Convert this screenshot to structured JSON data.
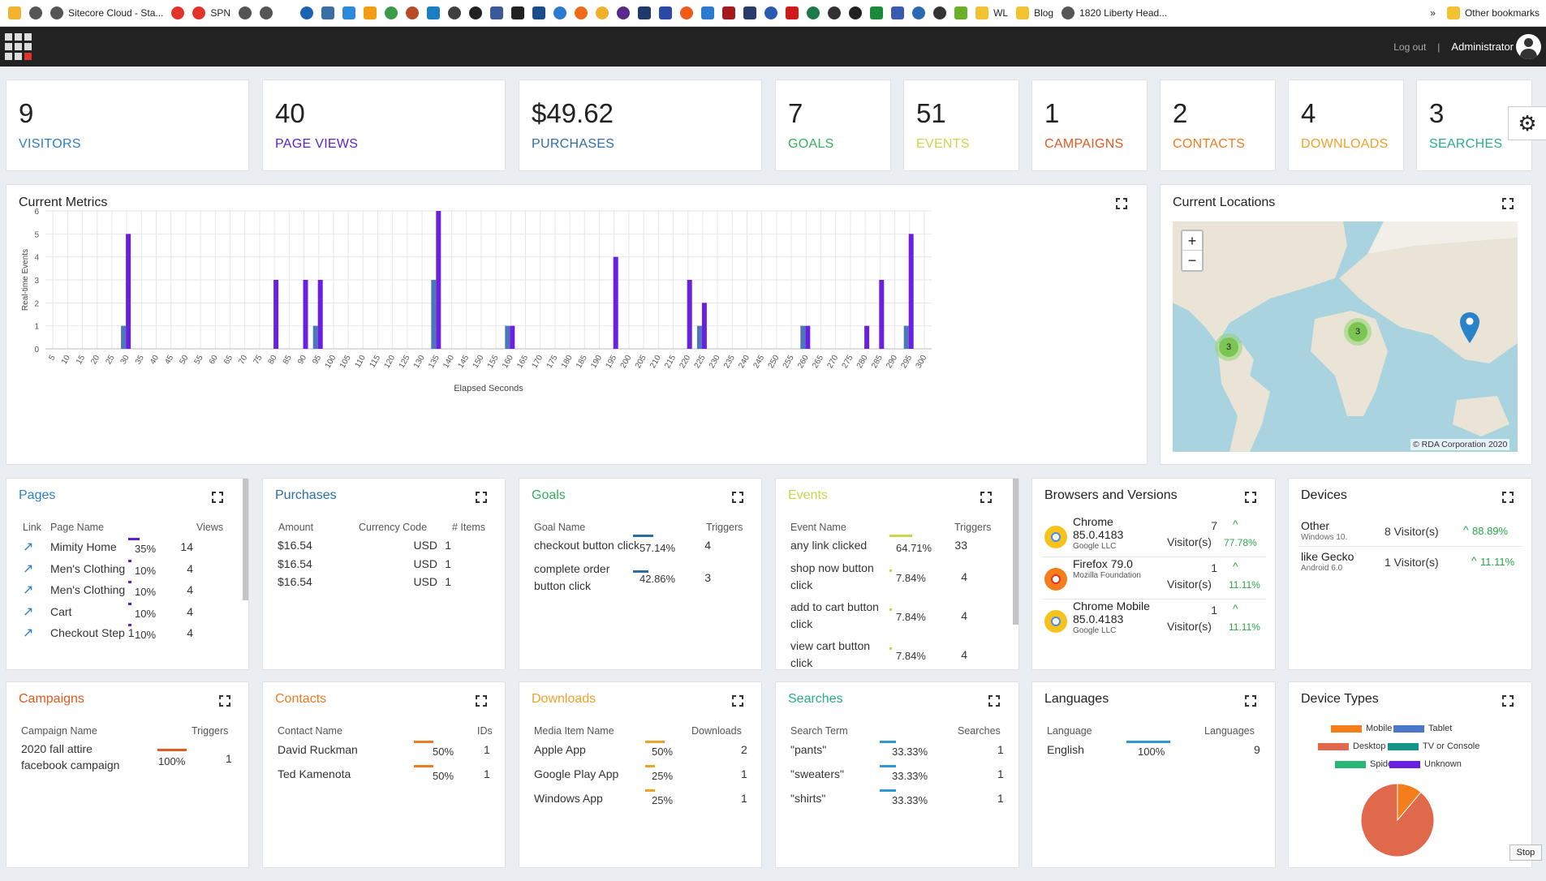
{
  "bookmarks": [
    "Sitecore Cloud - Sta...",
    "SPN",
    "WL",
    "Blog",
    "1820 Liberty Head...",
    "Other bookmarks"
  ],
  "bookmarks_more": "»",
  "topbar": {
    "logout": "Log out",
    "separator": "|",
    "user": "Administrator"
  },
  "kpis": [
    {
      "value": "9",
      "label": "VISITORS",
      "color": "#2c7fc4"
    },
    {
      "value": "40",
      "label": "PAGE VIEWS",
      "color": "#5a1fd1"
    },
    {
      "value": "$49.62",
      "label": "PURCHASES",
      "color": "#2b6ea6"
    },
    {
      "value": "7",
      "label": "GOALS",
      "color": "#37ae5d"
    },
    {
      "value": "51",
      "label": "EVENTS",
      "color": "#c9d64e"
    },
    {
      "value": "1",
      "label": "CAMPAIGNS",
      "color": "#e2581d"
    },
    {
      "value": "2",
      "label": "CONTACTS",
      "color": "#f07b22"
    },
    {
      "value": "4",
      "label": "DOWNLOADS",
      "color": "#f0a12a"
    },
    {
      "value": "3",
      "label": "SEARCHES",
      "color": "#2aab8c"
    }
  ],
  "metrics": {
    "title": "Current Metrics",
    "chart_data": {
      "type": "bar",
      "xlabel": "Elapsed Seconds",
      "ylabel": "Real-time Events",
      "ylim": [
        0,
        6
      ],
      "yticks": [
        0,
        1,
        2,
        3,
        4,
        5,
        6
      ],
      "xticks": [
        5,
        10,
        15,
        20,
        25,
        30,
        35,
        40,
        45,
        50,
        55,
        60,
        65,
        70,
        75,
        80,
        85,
        90,
        95,
        100,
        105,
        110,
        115,
        120,
        125,
        130,
        135,
        140,
        145,
        150,
        155,
        160,
        165,
        170,
        175,
        180,
        185,
        190,
        195,
        200,
        205,
        210,
        215,
        220,
        225,
        230,
        235,
        240,
        245,
        250,
        255,
        260,
        265,
        270,
        275,
        280,
        285,
        290,
        295,
        300
      ],
      "grid": true,
      "series": [
        {
          "color": "#4a78b8",
          "points": [
            [
              30,
              1
            ],
            [
              95,
              1
            ],
            [
              135,
              3
            ],
            [
              160,
              1
            ],
            [
              225,
              1
            ],
            [
              260,
              1
            ],
            [
              295,
              1
            ]
          ]
        },
        {
          "color": "#6b1fe0",
          "points": [
            [
              30,
              5
            ],
            [
              80,
              3
            ],
            [
              90,
              3
            ],
            [
              95,
              3
            ],
            [
              135,
              6
            ],
            [
              160,
              1
            ],
            [
              195,
              4
            ],
            [
              220,
              3
            ],
            [
              225,
              2
            ],
            [
              260,
              1
            ],
            [
              280,
              1
            ],
            [
              285,
              3
            ],
            [
              295,
              5
            ]
          ]
        }
      ]
    }
  },
  "locations": {
    "title": "Current Locations",
    "zoom_in": "+",
    "zoom_out": "−",
    "clusters": [
      "3",
      "3"
    ],
    "attribution": "© RDA Corporation 2020"
  },
  "pages": {
    "title": "Pages",
    "h_link": "Link",
    "h_name": "Page Name",
    "h_views": "Views",
    "rows": [
      {
        "name": "Mimity Home",
        "pct": "35%",
        "frac": 0.35,
        "views": "14"
      },
      {
        "name": "Men's Clothing",
        "pct": "10%",
        "frac": 0.1,
        "views": "4"
      },
      {
        "name": "Men's Clothing",
        "pct": "10%",
        "frac": 0.1,
        "views": "4"
      },
      {
        "name": "Cart",
        "pct": "10%",
        "frac": 0.1,
        "views": "4"
      },
      {
        "name": "Checkout Step 1",
        "pct": "10%",
        "frac": 0.1,
        "views": "4"
      }
    ]
  },
  "purchases": {
    "title": "Purchases",
    "h_amount": "Amount",
    "h_currency": "Currency Code",
    "h_items": "# Items",
    "rows": [
      {
        "amount": "$16.54",
        "currency": "USD",
        "items": "1"
      },
      {
        "amount": "$16.54",
        "currency": "USD",
        "items": "1"
      },
      {
        "amount": "$16.54",
        "currency": "USD",
        "items": "1"
      }
    ]
  },
  "goals": {
    "title": "Goals",
    "h_name": "Goal Name",
    "h_triggers": "Triggers",
    "rows": [
      {
        "name1": "checkout button click",
        "name2": "",
        "pct": "57.14%",
        "frac": 0.5714,
        "triggers": "4"
      },
      {
        "name1": "complete order",
        "name2": "button click",
        "pct": "42.86%",
        "frac": 0.4286,
        "triggers": "3"
      }
    ]
  },
  "events": {
    "title": "Events",
    "h_name": "Event Name",
    "h_triggers": "Triggers",
    "rows": [
      {
        "name1": "any link clicked",
        "name2": "",
        "pct": "64.71%",
        "frac": 0.6471,
        "triggers": "33"
      },
      {
        "name1": "shop now button",
        "name2": "click",
        "pct": "7.84%",
        "frac": 0.0784,
        "triggers": "4"
      },
      {
        "name1": "add to cart button",
        "name2": "click",
        "pct": "7.84%",
        "frac": 0.0784,
        "triggers": "4"
      },
      {
        "name1": "view cart button",
        "name2": "click",
        "pct": "7.84%",
        "frac": 0.0784,
        "triggers": "4"
      }
    ]
  },
  "browsers": {
    "title": "Browsers and Versions",
    "rows": [
      {
        "name": "Chrome",
        "version": "85.0.4183",
        "vendor": "Google LLC",
        "count": "7",
        "unit": "Visitor(s)",
        "pct": "77.78%",
        "icon": "chrome-icon"
      },
      {
        "name": "Firefox 79.0",
        "version": "",
        "vendor": "Mozilla Foundation",
        "count": "1",
        "unit": "Visitor(s)",
        "pct": "11.11%",
        "icon": "firefox-icon"
      },
      {
        "name": "Chrome Mobile",
        "version": "85.0.4183",
        "vendor": "Google LLC",
        "count": "1",
        "unit": "Visitor(s)",
        "pct": "11.11%",
        "icon": "chrome-icon"
      }
    ]
  },
  "devices": {
    "title": "Devices",
    "rows": [
      {
        "name": "Other",
        "os": "Windows 10.",
        "visitors": "8 Visitor(s)",
        "pct": "88.89%"
      },
      {
        "name": "like Gecko",
        "os": "Android 6.0",
        "visitors": "1 Visitor(s)",
        "pct": "11.11%"
      }
    ]
  },
  "campaigns": {
    "title": "Campaigns",
    "h_name": "Campaign Name",
    "h_triggers": "Triggers",
    "rows": [
      {
        "name1": "2020 fall attire",
        "name2": "facebook campaign",
        "pct": "100%",
        "frac": 1.0,
        "triggers": "1"
      }
    ]
  },
  "contacts": {
    "title": "Contacts",
    "h_name": "Contact Name",
    "h_ids": "IDs",
    "rows": [
      {
        "name": "David Ruckman",
        "pct": "50%",
        "frac": 0.5,
        "ids": "1"
      },
      {
        "name": "Ted Kamenota",
        "pct": "50%",
        "frac": 0.5,
        "ids": "1"
      }
    ]
  },
  "downloads": {
    "title": "Downloads",
    "h_name": "Media Item Name",
    "h_downloads": "Downloads",
    "rows": [
      {
        "name": "Apple App",
        "pct": "50%",
        "frac": 0.5,
        "count": "2"
      },
      {
        "name": "Google Play App",
        "pct": "25%",
        "frac": 0.25,
        "count": "1"
      },
      {
        "name": "Windows App",
        "pct": "25%",
        "frac": 0.25,
        "count": "1"
      }
    ]
  },
  "searches": {
    "title": "Searches",
    "h_term": "Search Term",
    "h_searches": "Searches",
    "rows": [
      {
        "term": "\"pants\"",
        "pct": "33.33%",
        "frac": 0.3333,
        "count": "1"
      },
      {
        "term": "\"sweaters\"",
        "pct": "33.33%",
        "frac": 0.3333,
        "count": "1"
      },
      {
        "term": "\"shirts\"",
        "pct": "33.33%",
        "frac": 0.3333,
        "count": "1"
      }
    ]
  },
  "languages": {
    "title": "Languages",
    "h_lang": "Language",
    "h_count": "Languages",
    "rows": [
      {
        "name": "English",
        "pct": "100%",
        "frac": 1.0,
        "count": "9"
      }
    ]
  },
  "device_types": {
    "title": "Device Types",
    "chart_data": {
      "type": "pie",
      "legend": [
        {
          "name": "Mobile",
          "color": "#f57d1b"
        },
        {
          "name": "Tablet",
          "color": "#4a78c8"
        },
        {
          "name": "Desktop",
          "color": "#e0684b"
        },
        {
          "name": "TV or Console",
          "color": "#13948a"
        },
        {
          "name": "Spider",
          "color": "#2bb673"
        },
        {
          "name": "Unknown",
          "color": "#6b1fe0"
        }
      ],
      "slices": [
        {
          "name": "Mobile",
          "value": 1
        },
        {
          "name": "Desktop",
          "value": 8
        }
      ]
    }
  },
  "stop_label": "Stop"
}
